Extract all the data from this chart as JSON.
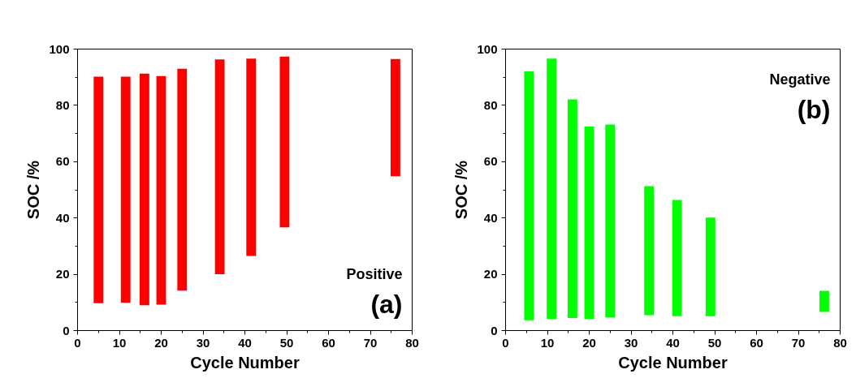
{
  "chart_data": [
    {
      "type": "bar",
      "xlabel": "Cycle Number",
      "ylabel": "SOC /%",
      "annotations": [
        "Positive",
        "(a)"
      ],
      "color": "#ff0000",
      "x": [
        5,
        11.5,
        16,
        20,
        25,
        34,
        41.5,
        49.5,
        76
      ],
      "base": [
        9.7,
        9.9,
        9.0,
        9.2,
        14.2,
        20.0,
        26.5,
        36.7,
        54.8
      ],
      "values": [
        80.5,
        80.3,
        82.3,
        81.2,
        78.8,
        76.3,
        70.1,
        60.6,
        41.7
      ],
      "xlim": [
        0,
        80
      ],
      "ylim": [
        0,
        100
      ],
      "xticks": [
        0,
        10,
        20,
        30,
        40,
        50,
        60,
        70,
        80
      ],
      "yticks": [
        0,
        20,
        40,
        60,
        80,
        100
      ]
    },
    {
      "type": "bar",
      "xlabel": "Cycle Number",
      "ylabel": "SOC /%",
      "annotations": [
        "Negative",
        "(b)"
      ],
      "color": "#00ff00",
      "x": [
        5.6,
        11,
        16,
        20,
        25,
        34.3,
        41,
        49,
        76.2
      ],
      "base": [
        3.7,
        4.1,
        4.5,
        4.1,
        4.7,
        5.5,
        5.1,
        5.1,
        6.6
      ],
      "values": [
        88.4,
        92.5,
        77.6,
        68.4,
        68.5,
        45.8,
        41.3,
        35.0,
        7.5
      ],
      "xlim": [
        0,
        80
      ],
      "ylim": [
        0,
        100
      ],
      "xticks": [
        0,
        10,
        20,
        30,
        40,
        50,
        60,
        70,
        80
      ],
      "yticks": [
        0,
        20,
        40,
        60,
        80,
        100
      ]
    }
  ]
}
